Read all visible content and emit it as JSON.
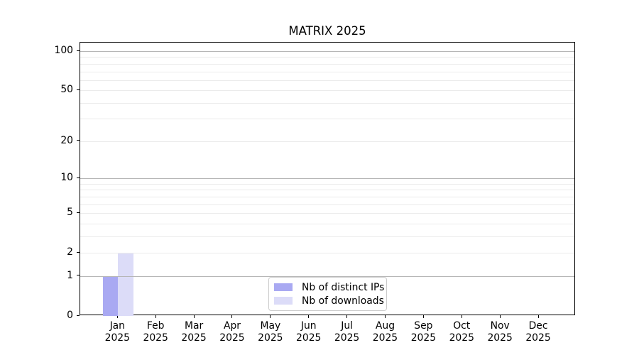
{
  "chart_data": {
    "type": "bar",
    "title": "MATRIX 2025",
    "categories_months": [
      "Jan",
      "Feb",
      "Mar",
      "Apr",
      "May",
      "Jun",
      "Jul",
      "Aug",
      "Sep",
      "Oct",
      "Nov",
      "Dec"
    ],
    "categories_year": "2025",
    "series": [
      {
        "name": "Nb of distinct IPs",
        "color": "#a9a9f2",
        "values": [
          1,
          0,
          0,
          0,
          0,
          0,
          0,
          0,
          0,
          0,
          0,
          0
        ]
      },
      {
        "name": "Nb of downloads",
        "color": "#dcdcf8",
        "values": [
          2,
          0,
          0,
          0,
          0,
          0,
          0,
          0,
          0,
          0,
          0,
          0
        ]
      }
    ],
    "y_axis": {
      "scale": "log1p",
      "tick_values": [
        0,
        1,
        2,
        5,
        10,
        20,
        50,
        100
      ],
      "major_grid_values": [
        1,
        10,
        100
      ],
      "minor_grid_values": [
        2,
        3,
        4,
        5,
        6,
        7,
        8,
        9,
        20,
        30,
        40,
        50,
        60,
        70,
        80,
        90
      ],
      "max": 116.2
    },
    "x_axis": {
      "tick_label_format": "month-over-year"
    },
    "grid": "horizontal",
    "legend_position": "lower-center"
  }
}
